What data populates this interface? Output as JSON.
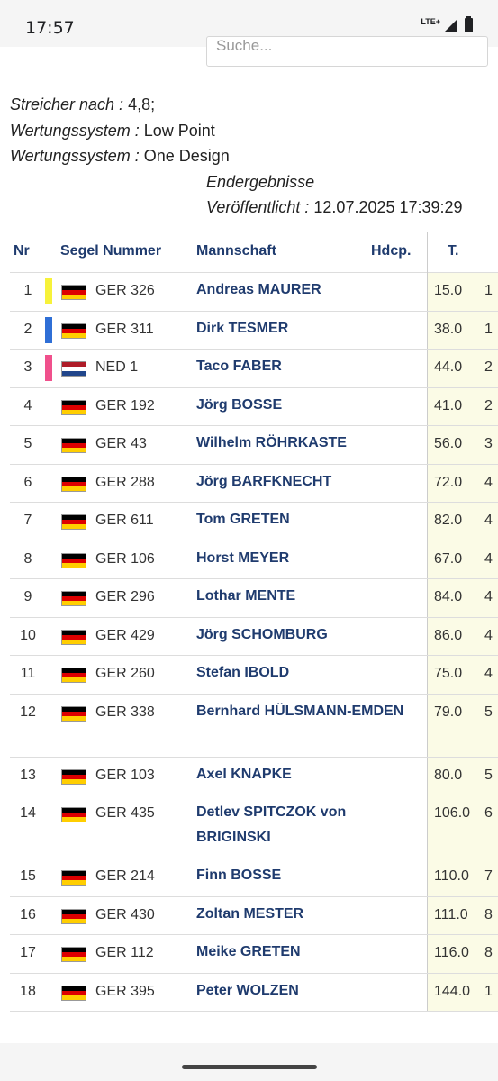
{
  "status_bar": {
    "time": "17:57",
    "network": "LTE+",
    "icons": [
      "signal-icon",
      "battery-icon"
    ]
  },
  "search": {
    "placeholder": "Suche..."
  },
  "info": {
    "discards_label": "Streicher nach :",
    "discards_value": "4,8;",
    "scoring_label_1": "Wertungssystem :",
    "scoring_value_1": "Low Point",
    "scoring_label_2": "Wertungssystem :",
    "scoring_value_2": "One Design",
    "results_status": "Endergebnisse",
    "published_label": "Veröffentlicht :",
    "published_value": "12.07.2025 17:39:29"
  },
  "table": {
    "headers": {
      "nr": "Nr",
      "sail": "Segel Nummer",
      "crew": "Mannschaft",
      "hdcp": "Hdcp.",
      "total": "T."
    },
    "colors": {
      "yellow": "#f7f23a",
      "blue": "#2f6fd6",
      "pink": "#f0508c",
      "header_text": "#1f3b6e",
      "total_bg": "#fbfbe6"
    },
    "rows": [
      {
        "nr": "1",
        "flag": "de",
        "color": "#f7f23a",
        "sail": "GER 326",
        "crew": "Andreas MAURER",
        "total": "15.0",
        "next": "1"
      },
      {
        "nr": "2",
        "flag": "de",
        "color": "#2f6fd6",
        "sail": "GER 311",
        "crew": "Dirk TESMER",
        "total": "38.0",
        "next": "1"
      },
      {
        "nr": "3",
        "flag": "nl",
        "color": "#f0508c",
        "sail": "NED 1",
        "crew": "Taco FABER",
        "total": "44.0",
        "next": "2"
      },
      {
        "nr": "4",
        "flag": "de",
        "color": "",
        "sail": "GER 192",
        "crew": "Jörg BOSSE",
        "total": "41.0",
        "next": "2"
      },
      {
        "nr": "5",
        "flag": "de",
        "color": "",
        "sail": "GER 43",
        "crew": "Wilhelm RÖHRKASTE",
        "total": "56.0",
        "next": "3"
      },
      {
        "nr": "6",
        "flag": "de",
        "color": "",
        "sail": "GER 288",
        "crew": "Jörg BARFKNECHT",
        "total": "72.0",
        "next": "4"
      },
      {
        "nr": "7",
        "flag": "de",
        "color": "",
        "sail": "GER 611",
        "crew": "Tom GRETEN",
        "total": "82.0",
        "next": "4"
      },
      {
        "nr": "8",
        "flag": "de",
        "color": "",
        "sail": "GER 106",
        "crew": "Horst MEYER",
        "total": "67.0",
        "next": "4"
      },
      {
        "nr": "9",
        "flag": "de",
        "color": "",
        "sail": "GER 296",
        "crew": "Lothar MENTE",
        "total": "84.0",
        "next": "4"
      },
      {
        "nr": "10",
        "flag": "de",
        "color": "",
        "sail": "GER 429",
        "crew": "Jörg SCHOMBURG",
        "total": "86.0",
        "next": "4"
      },
      {
        "nr": "11",
        "flag": "de",
        "color": "",
        "sail": "GER 260",
        "crew": "Stefan IBOLD",
        "total": "75.0",
        "next": "4"
      },
      {
        "nr": "12",
        "flag": "de",
        "color": "",
        "sail": "GER 338",
        "crew": "Bernhard HÜLSMANN-EMDEN",
        "total": "79.0",
        "next": "5",
        "tall": true
      },
      {
        "nr": "13",
        "flag": "de",
        "color": "",
        "sail": "GER 103",
        "crew": "Axel KNAPKE",
        "total": "80.0",
        "next": "5"
      },
      {
        "nr": "14",
        "flag": "de",
        "color": "",
        "sail": "GER 435",
        "crew": "Detlev SPITCZOK von BRIGINSKI",
        "total": "106.0",
        "next": "6",
        "tall": true
      },
      {
        "nr": "15",
        "flag": "de",
        "color": "",
        "sail": "GER 214",
        "crew": "Finn BOSSE",
        "total": "110.0",
        "next": "7"
      },
      {
        "nr": "16",
        "flag": "de",
        "color": "",
        "sail": "GER 430",
        "crew": "Zoltan MESTER",
        "total": "111.0",
        "next": "8"
      },
      {
        "nr": "17",
        "flag": "de",
        "color": "",
        "sail": "GER 112",
        "crew": "Meike GRETEN",
        "total": "116.0",
        "next": "8"
      },
      {
        "nr": "18",
        "flag": "de",
        "color": "",
        "sail": "GER 395",
        "crew": "Peter WOLZEN",
        "total": "144.0",
        "next": "1"
      }
    ]
  }
}
